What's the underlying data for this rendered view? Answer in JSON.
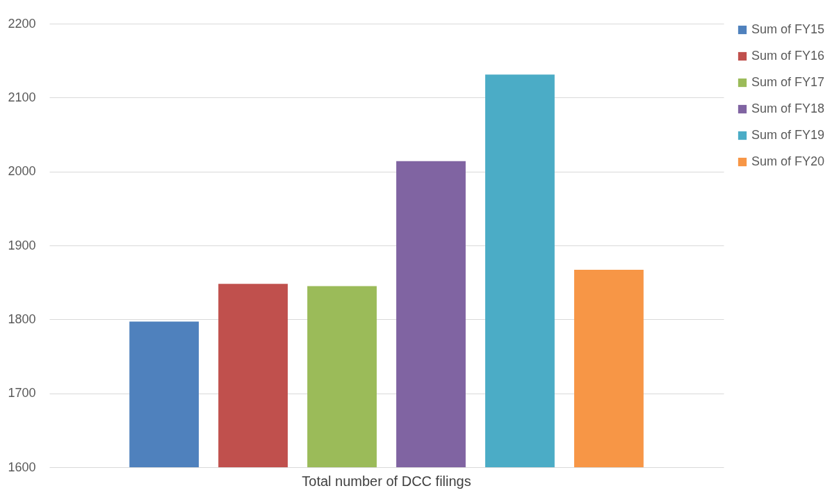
{
  "chart_data": {
    "type": "bar",
    "categories": [
      "Total number of DCC filings"
    ],
    "series": [
      {
        "name": "Sum of FY15",
        "color": "#4f81bd",
        "values": [
          1797
        ]
      },
      {
        "name": "Sum of FY16",
        "color": "#c0504d",
        "values": [
          1848
        ]
      },
      {
        "name": "Sum of FY17",
        "color": "#9bbb59",
        "values": [
          1845
        ]
      },
      {
        "name": "Sum of FY18",
        "color": "#8064a2",
        "values": [
          2014
        ]
      },
      {
        "name": "Sum of FY19",
        "color": "#4bacc6",
        "values": [
          2131
        ]
      },
      {
        "name": "Sum of FY20",
        "color": "#f79646",
        "values": [
          1867
        ]
      }
    ],
    "ylim": [
      1600,
      2200
    ],
    "yticks": [
      1600,
      1700,
      1800,
      1900,
      2000,
      2100,
      2200
    ],
    "grid": "y",
    "legend": "right"
  }
}
